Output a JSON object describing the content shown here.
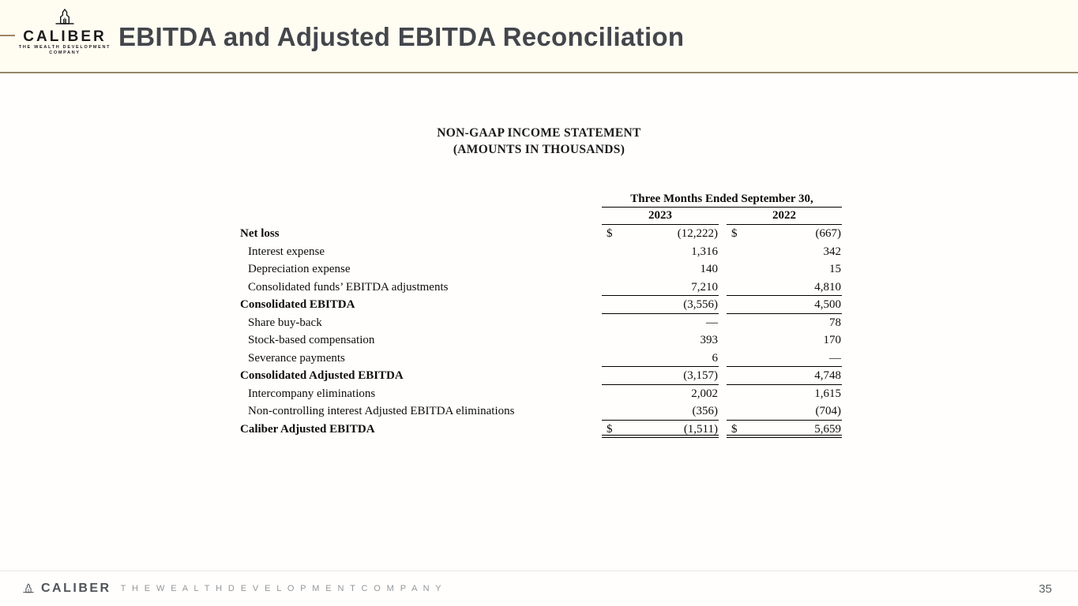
{
  "header": {
    "title": "EBITDA and Adjusted EBITDA Reconciliation",
    "logo_name": "CALIBER",
    "logo_tagline_line1": "THE WEALTH DEVELOPMENT",
    "logo_tagline_line2": "COMPANY"
  },
  "statement": {
    "title": "NON-GAAP INCOME STATEMENT",
    "subtitle": "(AMOUNTS IN THOUSANDS)"
  },
  "table": {
    "period_header": "Three Months Ended September 30,",
    "year_columns": [
      "2023",
      "2022"
    ],
    "rows": [
      {
        "label": "Net loss",
        "bold": true,
        "indent": false,
        "dollar": true,
        "values": [
          "(12,222)",
          "(667)"
        ],
        "underline": "none"
      },
      {
        "label": "Interest expense",
        "bold": false,
        "indent": true,
        "dollar": false,
        "values": [
          "1,316",
          "342"
        ],
        "underline": "none"
      },
      {
        "label": "Depreciation expense",
        "bold": false,
        "indent": true,
        "dollar": false,
        "values": [
          "140",
          "15"
        ],
        "underline": "none"
      },
      {
        "label": "Consolidated funds’ EBITDA adjustments",
        "bold": false,
        "indent": true,
        "dollar": false,
        "values": [
          "7,210",
          "4,810"
        ],
        "underline": "single"
      },
      {
        "label": "Consolidated EBITDA",
        "bold": true,
        "indent": false,
        "dollar": false,
        "values": [
          "(3,556)",
          "4,500"
        ],
        "underline": "single"
      },
      {
        "label": "Share buy-back",
        "bold": false,
        "indent": true,
        "dollar": false,
        "values": [
          "—",
          "78"
        ],
        "underline": "none"
      },
      {
        "label": "Stock-based compensation",
        "bold": false,
        "indent": true,
        "dollar": false,
        "values": [
          "393",
          "170"
        ],
        "underline": "none"
      },
      {
        "label": "Severance payments",
        "bold": false,
        "indent": true,
        "dollar": false,
        "values": [
          "6",
          "—"
        ],
        "underline": "single"
      },
      {
        "label": "Consolidated Adjusted EBITDA",
        "bold": true,
        "indent": false,
        "dollar": false,
        "values": [
          "(3,157)",
          "4,748"
        ],
        "underline": "single"
      },
      {
        "label": "Intercompany eliminations",
        "bold": false,
        "indent": true,
        "dollar": false,
        "values": [
          "2,002",
          "1,615"
        ],
        "underline": "none"
      },
      {
        "label": "Non-controlling interest Adjusted EBITDA eliminations",
        "bold": false,
        "indent": true,
        "dollar": false,
        "values": [
          "(356)",
          "(704)"
        ],
        "underline": "single"
      },
      {
        "label": "Caliber Adjusted EBITDA",
        "bold": true,
        "indent": false,
        "dollar": true,
        "values": [
          "(1,511)",
          "5,659"
        ],
        "underline": "double"
      }
    ]
  },
  "footer": {
    "logo_name": "CALIBER",
    "tagline": "T H E   W E A L T H   D E V E L O P M E N T   C O M P A N Y",
    "page_number": "35"
  },
  "colors": {
    "header_rule": "#93886a",
    "accent_dash": "#a08364",
    "title_text": "#43464b",
    "table_text": "#0d0d0d",
    "footer_rule": "#e8e6e1",
    "footer_name": "#50545a",
    "footer_tagline": "#94979c",
    "page_number": "#5d6165",
    "header_background": "#fffdf2",
    "page_background": "#fffefc"
  }
}
